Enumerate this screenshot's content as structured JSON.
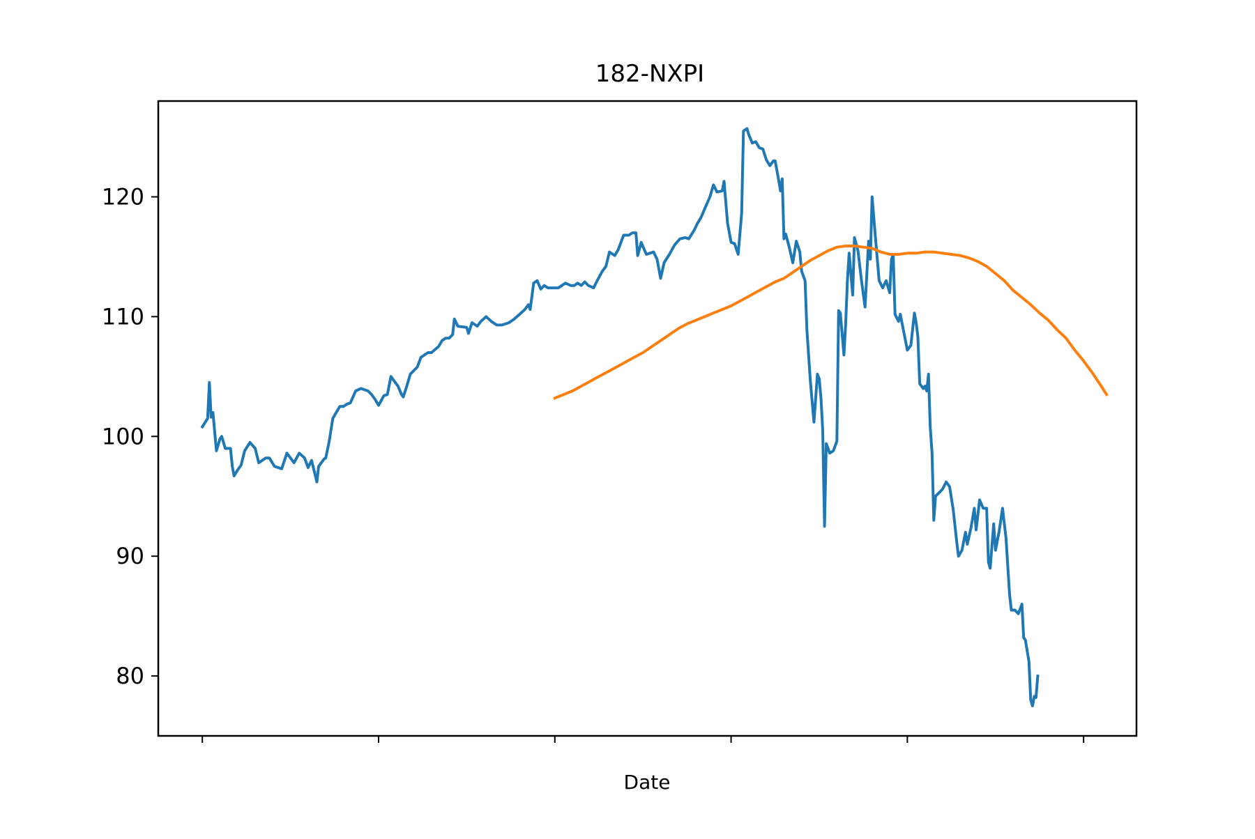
{
  "chart_data": {
    "type": "line",
    "title": "182-NXPI",
    "xlabel": "Date",
    "ylabel": "",
    "xlim": [
      -25,
      530
    ],
    "ylim": [
      75,
      128
    ],
    "yticks": [
      80,
      90,
      100,
      110,
      120
    ],
    "xticks": [
      0,
      100,
      200,
      300,
      400,
      500
    ],
    "xtick_labels": [
      "",
      "",
      "",
      "",
      "",
      ""
    ],
    "grid": false,
    "legend": "none",
    "series": [
      {
        "color": "#1f77b4",
        "points": [
          [
            0,
            100.8
          ],
          [
            3,
            101.5
          ],
          [
            4,
            104.5
          ],
          [
            5,
            101.6
          ],
          [
            6,
            102
          ],
          [
            8,
            98.8
          ],
          [
            10,
            99.8
          ],
          [
            11,
            100
          ],
          [
            13,
            99
          ],
          [
            16,
            99
          ],
          [
            17,
            97.5
          ],
          [
            18,
            96.7
          ],
          [
            20,
            97.2
          ],
          [
            22,
            97.6
          ],
          [
            24,
            98.8
          ],
          [
            27,
            99.5
          ],
          [
            30,
            99
          ],
          [
            32,
            97.8
          ],
          [
            36,
            98.2
          ],
          [
            38,
            98.2
          ],
          [
            41,
            97.5
          ],
          [
            45,
            97.3
          ],
          [
            48,
            98.6
          ],
          [
            50,
            98.2
          ],
          [
            52,
            97.8
          ],
          [
            55,
            98.6
          ],
          [
            58,
            98.2
          ],
          [
            60,
            97.4
          ],
          [
            62,
            98
          ],
          [
            65,
            96.2
          ],
          [
            66,
            97.5
          ],
          [
            69,
            98.1
          ],
          [
            70,
            98.2
          ],
          [
            72,
            99.6
          ],
          [
            74,
            101.5
          ],
          [
            76,
            102
          ],
          [
            78,
            102.5
          ],
          [
            80,
            102.5
          ],
          [
            82,
            102.7
          ],
          [
            84,
            102.8
          ],
          [
            87,
            103.8
          ],
          [
            90,
            104
          ],
          [
            94,
            103.8
          ],
          [
            96,
            103.5
          ],
          [
            98,
            103.1
          ],
          [
            100,
            102.6
          ],
          [
            103,
            103.4
          ],
          [
            105,
            103.5
          ],
          [
            107,
            105
          ],
          [
            109,
            104.6
          ],
          [
            111,
            104.2
          ],
          [
            113,
            103.5
          ],
          [
            114,
            103.3
          ],
          [
            116,
            104.2
          ],
          [
            118,
            105.2
          ],
          [
            122,
            105.8
          ],
          [
            124,
            106.6
          ],
          [
            128,
            107
          ],
          [
            130,
            107
          ],
          [
            134,
            107.5
          ],
          [
            136,
            108
          ],
          [
            138,
            108.2
          ],
          [
            140,
            108.2
          ],
          [
            142,
            108.5
          ],
          [
            143,
            109.8
          ],
          [
            145,
            109.2
          ],
          [
            150,
            109.1
          ],
          [
            151,
            108.6
          ],
          [
            153,
            109.5
          ],
          [
            156,
            109.2
          ],
          [
            158,
            109.6
          ],
          [
            161,
            110
          ],
          [
            164,
            109.6
          ],
          [
            167,
            109.3
          ],
          [
            170,
            109.3
          ],
          [
            174,
            109.5
          ],
          [
            177,
            109.8
          ],
          [
            180,
            110.2
          ],
          [
            183,
            110.6
          ],
          [
            185,
            111
          ],
          [
            186,
            110.6
          ],
          [
            188,
            112.8
          ],
          [
            190,
            113
          ],
          [
            192,
            112.3
          ],
          [
            194,
            112.6
          ],
          [
            196,
            112.4
          ],
          [
            199,
            112.4
          ],
          [
            202,
            112.4
          ],
          [
            204,
            112.6
          ],
          [
            206,
            112.8
          ],
          [
            209,
            112.6
          ],
          [
            211,
            112.6
          ],
          [
            213,
            112.8
          ],
          [
            215,
            112.6
          ],
          [
            217,
            112.9
          ],
          [
            219,
            112.6
          ],
          [
            222,
            112.4
          ],
          [
            224,
            113
          ],
          [
            227,
            113.8
          ],
          [
            229,
            114.2
          ],
          [
            231,
            115.4
          ],
          [
            234,
            115.1
          ],
          [
            236,
            115.6
          ],
          [
            239,
            116.8
          ],
          [
            242,
            116.8
          ],
          [
            244,
            117
          ],
          [
            246,
            117
          ],
          [
            247,
            115.1
          ],
          [
            249,
            116.2
          ],
          [
            251,
            115.5
          ],
          [
            252,
            115.2
          ],
          [
            254,
            115.3
          ],
          [
            256,
            115.4
          ],
          [
            258,
            114.8
          ],
          [
            260,
            113.2
          ],
          [
            262,
            114.5
          ],
          [
            265,
            115.2
          ],
          [
            268,
            116
          ],
          [
            271,
            116.5
          ],
          [
            274,
            116.6
          ],
          [
            276,
            116.5
          ],
          [
            279,
            117.2
          ],
          [
            281,
            117.8
          ],
          [
            283,
            118.3
          ],
          [
            285,
            119
          ],
          [
            288,
            120
          ],
          [
            290,
            121
          ],
          [
            292,
            120.4
          ],
          [
            295,
            120.5
          ],
          [
            296,
            121.3
          ],
          [
            298,
            117.8
          ],
          [
            300,
            116.2
          ],
          [
            302,
            116.1
          ],
          [
            304,
            115.2
          ],
          [
            306,
            118.6
          ],
          [
            307,
            125.5
          ],
          [
            309,
            125.7
          ],
          [
            310,
            125.2
          ],
          [
            312,
            124.5
          ],
          [
            314,
            124.6
          ],
          [
            316,
            124.1
          ],
          [
            318,
            124
          ],
          [
            320,
            123.1
          ],
          [
            322,
            122.6
          ],
          [
            324,
            123
          ],
          [
            325,
            123
          ],
          [
            327,
            121.4
          ],
          [
            328,
            120.5
          ],
          [
            329,
            121.5
          ],
          [
            330,
            116.5
          ],
          [
            331,
            116.9
          ],
          [
            333,
            115.8
          ],
          [
            335,
            114.5
          ],
          [
            337,
            116.3
          ],
          [
            339,
            115.4
          ],
          [
            340,
            113.8
          ],
          [
            342,
            113
          ],
          [
            343,
            108.9
          ],
          [
            345,
            104.6
          ],
          [
            347,
            101.2
          ],
          [
            349,
            105.2
          ],
          [
            350,
            104.8
          ],
          [
            351,
            103.2
          ],
          [
            352,
            100.5
          ],
          [
            353,
            92.5
          ],
          [
            354,
            99.4
          ],
          [
            356,
            98.6
          ],
          [
            358,
            98.8
          ],
          [
            360,
            99.6
          ],
          [
            361,
            110.5
          ],
          [
            362,
            110.3
          ],
          [
            364,
            106.8
          ],
          [
            365,
            109.4
          ],
          [
            366,
            113
          ],
          [
            367,
            115.3
          ],
          [
            369,
            111.8
          ],
          [
            370,
            116.6
          ],
          [
            372,
            115.5
          ],
          [
            374,
            113
          ],
          [
            376,
            110.8
          ],
          [
            378,
            116.3
          ],
          [
            379,
            114.8
          ],
          [
            380,
            120
          ],
          [
            382,
            116.4
          ],
          [
            384,
            113
          ],
          [
            386,
            112.4
          ],
          [
            388,
            113
          ],
          [
            390,
            112
          ],
          [
            391,
            114.8
          ],
          [
            392,
            115.2
          ],
          [
            393,
            110.2
          ],
          [
            395,
            109.6
          ],
          [
            396,
            110.2
          ],
          [
            398,
            108.7
          ],
          [
            400,
            107.2
          ],
          [
            402,
            107.6
          ],
          [
            404,
            110.3
          ],
          [
            405,
            109.5
          ],
          [
            406,
            108.3
          ],
          [
            407,
            104.4
          ],
          [
            409,
            104
          ],
          [
            410,
            104.2
          ],
          [
            411,
            103.8
          ],
          [
            412,
            105.2
          ],
          [
            413,
            100.8
          ],
          [
            414,
            98.6
          ],
          [
            415,
            93
          ],
          [
            416,
            95
          ],
          [
            418,
            95.3
          ],
          [
            420,
            95.6
          ],
          [
            422,
            96.2
          ],
          [
            424,
            95.8
          ],
          [
            426,
            93.9
          ],
          [
            428,
            91.2
          ],
          [
            429,
            90
          ],
          [
            431,
            90.5
          ],
          [
            433,
            92
          ],
          [
            434,
            91
          ],
          [
            436,
            92.3
          ],
          [
            438,
            94
          ],
          [
            439,
            92.2
          ],
          [
            441,
            94.7
          ],
          [
            443,
            94
          ],
          [
            445,
            94
          ],
          [
            446,
            89.5
          ],
          [
            447,
            89
          ],
          [
            449,
            92.7
          ],
          [
            450,
            90.5
          ],
          [
            452,
            92
          ],
          [
            454,
            94
          ],
          [
            456,
            91.5
          ],
          [
            458,
            86.8
          ],
          [
            459,
            85.5
          ],
          [
            461,
            85.5
          ],
          [
            463,
            85.2
          ],
          [
            465,
            86
          ],
          [
            466,
            83.2
          ],
          [
            467,
            83
          ],
          [
            469,
            81.2
          ],
          [
            470,
            78
          ],
          [
            471,
            77.5
          ],
          [
            472,
            78.3
          ],
          [
            473,
            78.2
          ],
          [
            474,
            80
          ]
        ]
      },
      {
        "color": "#ff7f0e",
        "points": [
          [
            200,
            103.2
          ],
          [
            205,
            103.5
          ],
          [
            210,
            103.8
          ],
          [
            215,
            104.2
          ],
          [
            220,
            104.6
          ],
          [
            225,
            105
          ],
          [
            230,
            105.4
          ],
          [
            235,
            105.8
          ],
          [
            240,
            106.2
          ],
          [
            245,
            106.6
          ],
          [
            250,
            107
          ],
          [
            255,
            107.5
          ],
          [
            260,
            108
          ],
          [
            265,
            108.5
          ],
          [
            270,
            109
          ],
          [
            275,
            109.4
          ],
          [
            280,
            109.7
          ],
          [
            285,
            110
          ],
          [
            290,
            110.3
          ],
          [
            295,
            110.6
          ],
          [
            300,
            110.9
          ],
          [
            305,
            111.3
          ],
          [
            310,
            111.7
          ],
          [
            315,
            112.1
          ],
          [
            320,
            112.5
          ],
          [
            325,
            112.9
          ],
          [
            330,
            113.2
          ],
          [
            335,
            113.7
          ],
          [
            340,
            114.2
          ],
          [
            345,
            114.7
          ],
          [
            350,
            115.1
          ],
          [
            355,
            115.5
          ],
          [
            360,
            115.8
          ],
          [
            365,
            115.9
          ],
          [
            370,
            115.9
          ],
          [
            375,
            115.8
          ],
          [
            380,
            115.7
          ],
          [
            385,
            115.4
          ],
          [
            390,
            115.2
          ],
          [
            395,
            115.2
          ],
          [
            400,
            115.3
          ],
          [
            405,
            115.3
          ],
          [
            410,
            115.4
          ],
          [
            415,
            115.4
          ],
          [
            420,
            115.3
          ],
          [
            425,
            115.2
          ],
          [
            430,
            115.1
          ],
          [
            435,
            114.9
          ],
          [
            440,
            114.6
          ],
          [
            445,
            114.2
          ],
          [
            450,
            113.6
          ],
          [
            455,
            113
          ],
          [
            460,
            112.2
          ],
          [
            465,
            111.6
          ],
          [
            470,
            111
          ],
          [
            475,
            110.3
          ],
          [
            480,
            109.7
          ],
          [
            485,
            108.9
          ],
          [
            490,
            108.2
          ],
          [
            495,
            107.2
          ],
          [
            500,
            106.3
          ],
          [
            505,
            105.3
          ],
          [
            510,
            104.2
          ],
          [
            513,
            103.5
          ]
        ]
      }
    ]
  }
}
